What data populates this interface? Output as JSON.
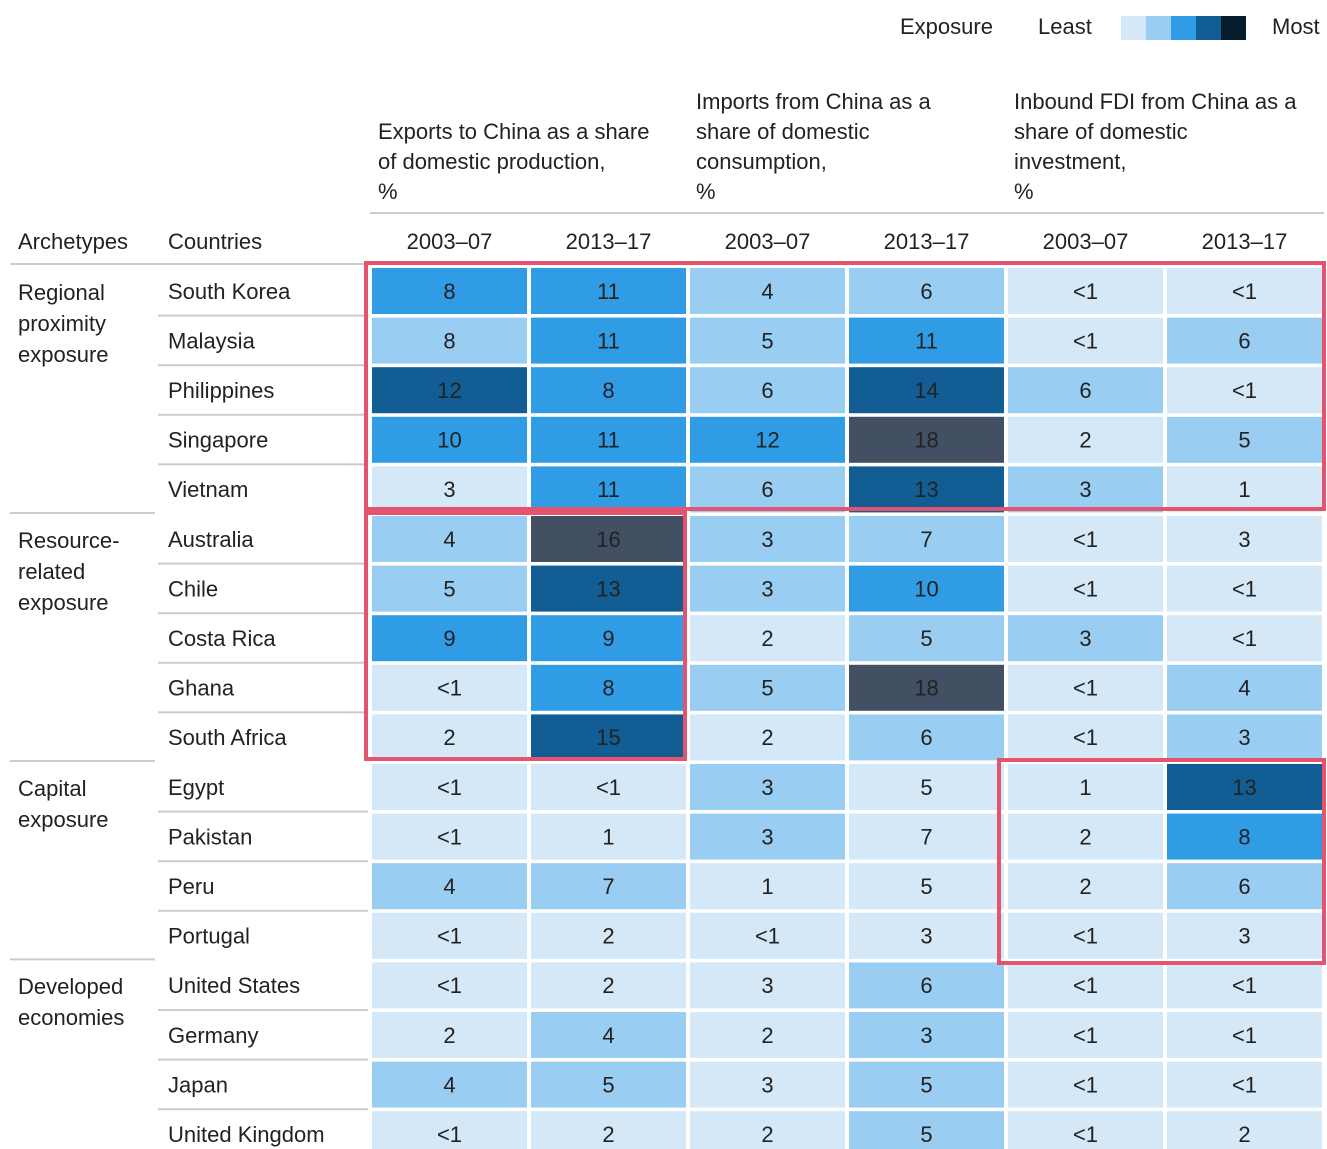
{
  "legend": {
    "title": "Exposure",
    "least": "Least",
    "most": "Most",
    "colors": [
      "#d4e8f7",
      "#99cdf2",
      "#309ce6",
      "#115d94",
      "#051c2c"
    ]
  },
  "header": {
    "archetypes": "Archetypes",
    "countries": "Countries"
  },
  "columns": [
    {
      "title": [
        "Exports to China as a share",
        "of domestic production,",
        "%"
      ],
      "periods": [
        "2003–07",
        "2013–17"
      ]
    },
    {
      "title": [
        "Imports from China as a",
        "share of domestic",
        "consumption,",
        "%"
      ],
      "periods": [
        "2003–07",
        "2013–17"
      ]
    },
    {
      "title": [
        "Inbound FDI from China as a",
        "share of domestic",
        "investment,",
        "%"
      ],
      "periods": [
        "2003–07",
        "2013–17"
      ]
    }
  ],
  "groups": [
    {
      "name": [
        "Regional",
        "proximity",
        "exposure"
      ],
      "rows": [
        {
          "country": "South Korea",
          "cells": [
            "8",
            "11",
            "4",
            "6",
            "<1",
            "<1"
          ],
          "colors": [
            "#309ce6",
            "#309ce6",
            "#99cdf2",
            "#99cdf2",
            "#d4e8f7",
            "#d4e8f7"
          ]
        },
        {
          "country": "Malaysia",
          "cells": [
            "8",
            "11",
            "5",
            "11",
            "<1",
            "6"
          ],
          "colors": [
            "#99cdf2",
            "#309ce6",
            "#99cdf2",
            "#309ce6",
            "#d4e8f7",
            "#99cdf2"
          ]
        },
        {
          "country": "Philippines",
          "cells": [
            "12",
            "8",
            "6",
            "14",
            "6",
            "<1"
          ],
          "colors": [
            "#115d94",
            "#309ce6",
            "#99cdf2",
            "#115d94",
            "#99cdf2",
            "#d4e8f7"
          ]
        },
        {
          "country": "Singapore",
          "cells": [
            "10",
            "11",
            "12",
            "18",
            "2",
            "5"
          ],
          "colors": [
            "#309ce6",
            "#309ce6",
            "#309ce6",
            "#434f63",
            "#d4e8f7",
            "#99cdf2"
          ]
        },
        {
          "country": "Vietnam",
          "cells": [
            "3",
            "11",
            "6",
            "13",
            "3",
            "1"
          ],
          "colors": [
            "#d4e8f7",
            "#309ce6",
            "#99cdf2",
            "#115d94",
            "#99cdf2",
            "#d4e8f7"
          ]
        }
      ]
    },
    {
      "name": [
        "Resource-",
        "related",
        "exposure"
      ],
      "rows": [
        {
          "country": "Australia",
          "cells": [
            "4",
            "16",
            "3",
            "7",
            "<1",
            "3"
          ],
          "colors": [
            "#99cdf2",
            "#434f63",
            "#99cdf2",
            "#99cdf2",
            "#d4e8f7",
            "#d4e8f7"
          ]
        },
        {
          "country": "Chile",
          "cells": [
            "5",
            "13",
            "3",
            "10",
            "<1",
            "<1"
          ],
          "colors": [
            "#99cdf2",
            "#115d94",
            "#99cdf2",
            "#309ce6",
            "#d4e8f7",
            "#d4e8f7"
          ]
        },
        {
          "country": "Costa Rica",
          "cells": [
            "9",
            "9",
            "2",
            "5",
            "3",
            "<1"
          ],
          "colors": [
            "#309ce6",
            "#309ce6",
            "#d4e8f7",
            "#99cdf2",
            "#99cdf2",
            "#d4e8f7"
          ]
        },
        {
          "country": "Ghana",
          "cells": [
            "<1",
            "8",
            "5",
            "18",
            "<1",
            "4"
          ],
          "colors": [
            "#d4e8f7",
            "#309ce6",
            "#99cdf2",
            "#434f63",
            "#d4e8f7",
            "#99cdf2"
          ]
        },
        {
          "country": "South Africa",
          "cells": [
            "2",
            "15",
            "2",
            "6",
            "<1",
            "3"
          ],
          "colors": [
            "#d4e8f7",
            "#115d94",
            "#d4e8f7",
            "#99cdf2",
            "#d4e8f7",
            "#99cdf2"
          ]
        }
      ]
    },
    {
      "name": [
        "Capital",
        "exposure"
      ],
      "rows": [
        {
          "country": "Egypt",
          "cells": [
            "<1",
            "<1",
            "3",
            "5",
            "1",
            "13"
          ],
          "colors": [
            "#d4e8f7",
            "#d4e8f7",
            "#99cdf2",
            "#d4e8f7",
            "#d4e8f7",
            "#115d94"
          ]
        },
        {
          "country": "Pakistan",
          "cells": [
            "<1",
            "1",
            "3",
            "7",
            "2",
            "8"
          ],
          "colors": [
            "#d4e8f7",
            "#d4e8f7",
            "#99cdf2",
            "#d4e8f7",
            "#d4e8f7",
            "#309ce6"
          ]
        },
        {
          "country": "Peru",
          "cells": [
            "4",
            "7",
            "1",
            "5",
            "2",
            "6"
          ],
          "colors": [
            "#99cdf2",
            "#99cdf2",
            "#d4e8f7",
            "#d4e8f7",
            "#d4e8f7",
            "#99cdf2"
          ]
        },
        {
          "country": "Portugal",
          "cells": [
            "<1",
            "2",
            "<1",
            "3",
            "<1",
            "3"
          ],
          "colors": [
            "#d4e8f7",
            "#d4e8f7",
            "#d4e8f7",
            "#d4e8f7",
            "#d4e8f7",
            "#d4e8f7"
          ]
        }
      ]
    },
    {
      "name": [
        "Developed",
        "economies"
      ],
      "rows": [
        {
          "country": "United States",
          "cells": [
            "<1",
            "2",
            "3",
            "6",
            "<1",
            "<1"
          ],
          "colors": [
            "#d4e8f7",
            "#d4e8f7",
            "#d4e8f7",
            "#99cdf2",
            "#d4e8f7",
            "#d4e8f7"
          ]
        },
        {
          "country": "Germany",
          "cells": [
            "2",
            "4",
            "2",
            "3",
            "<1",
            "<1"
          ],
          "colors": [
            "#d4e8f7",
            "#99cdf2",
            "#d4e8f7",
            "#99cdf2",
            "#d4e8f7",
            "#d4e8f7"
          ]
        },
        {
          "country": "Japan",
          "cells": [
            "4",
            "5",
            "3",
            "5",
            "<1",
            "<1"
          ],
          "colors": [
            "#99cdf2",
            "#99cdf2",
            "#d4e8f7",
            "#99cdf2",
            "#d4e8f7",
            "#d4e8f7"
          ]
        },
        {
          "country": "United Kingdom",
          "cells": [
            "<1",
            "2",
            "2",
            "5",
            "<1",
            "2"
          ],
          "colors": [
            "#d4e8f7",
            "#d4e8f7",
            "#d4e8f7",
            "#99cdf2",
            "#d4e8f7",
            "#d4e8f7"
          ]
        }
      ]
    }
  ]
}
